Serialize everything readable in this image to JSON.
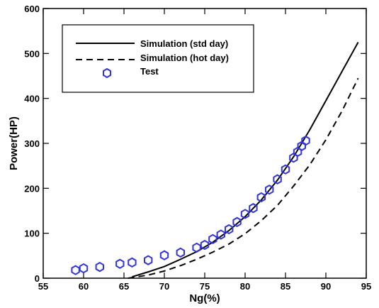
{
  "chart_data": {
    "type": "line",
    "title": "",
    "xlabel": "Ng(%)",
    "ylabel": "Power(HP)",
    "xlim": [
      55,
      95
    ],
    "ylim": [
      0,
      600
    ],
    "xticks": [
      55,
      60,
      65,
      70,
      75,
      80,
      85,
      90,
      95
    ],
    "yticks": [
      0,
      100,
      200,
      300,
      400,
      500,
      600
    ],
    "grid": false,
    "legend_position": "top-left",
    "series": [
      {
        "name": "Simulation (std day)",
        "style": "solid",
        "color": "#000000",
        "x": [
          66,
          68,
          70,
          72,
          74,
          76,
          78,
          80,
          82,
          84,
          86,
          88,
          90,
          92,
          94
        ],
        "y": [
          3,
          14,
          26,
          42,
          59,
          80,
          106,
          137,
          174,
          218,
          270,
          330,
          395,
          460,
          525
        ]
      },
      {
        "name": "Simulation (hot day)",
        "style": "dashed",
        "color": "#000000",
        "x": [
          65.5,
          68,
          70,
          72,
          74,
          76,
          78,
          80,
          82,
          84,
          86,
          88,
          90,
          92,
          94
        ],
        "y": [
          0,
          7,
          16,
          28,
          42,
          58,
          76,
          99,
          128,
          162,
          205,
          252,
          308,
          372,
          445
        ]
      },
      {
        "name": "Test",
        "style": "marker",
        "color": "#3333dd",
        "x": [
          59,
          60,
          62,
          64.5,
          66,
          68,
          70,
          72,
          74,
          75,
          76,
          77,
          78,
          79,
          80,
          81,
          82,
          83,
          84,
          85,
          86,
          86.5,
          87,
          87.5
        ],
        "y": [
          18,
          22,
          25,
          32,
          35,
          40,
          51,
          57,
          68,
          74,
          87,
          97,
          109,
          125,
          143,
          156,
          180,
          197,
          220,
          242,
          268,
          281,
          294,
          306
        ]
      }
    ]
  }
}
